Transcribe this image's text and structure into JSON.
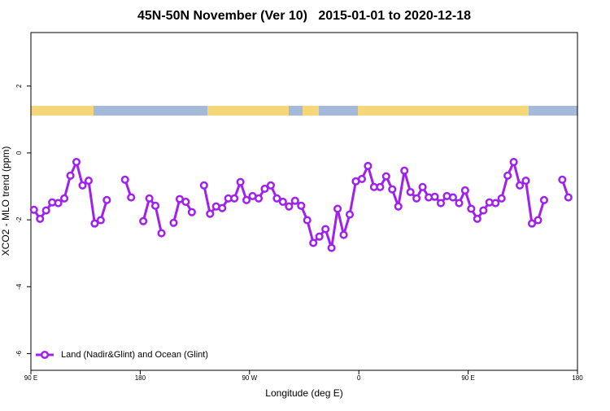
{
  "chart_data": {
    "type": "line",
    "title": "45N-50N November (Ver 10)   2015-01-01 to 2020-12-18",
    "x_label": "Longitude (deg E)",
    "y_label": "XCO2 - MLO trend (ppm)",
    "xlim": [
      90,
      540
    ],
    "xticks": [
      {
        "value": 90,
        "label": "90 E"
      },
      180,
      {
        "value": 270,
        "label": "90 W"
      },
      {
        "value": 360,
        "label": "0"
      },
      {
        "value": 450,
        "label": "90 E"
      },
      {
        "value": 540,
        "label": "180"
      }
    ],
    "ylim": [
      -6.5,
      3.6
    ],
    "yticks": [
      -6,
      -4,
      -2,
      0,
      2
    ],
    "legend": "bottom-left",
    "x": [
      92.5,
      97.5,
      102.5,
      107.5,
      112.5,
      117.5,
      122.5,
      127.5,
      132.5,
      137.5,
      142.5,
      147.5,
      152.5,
      157.5,
      162.5,
      167.5,
      172.5,
      177.5,
      182.5,
      187.5,
      192.5,
      197.5,
      202.5,
      207.5,
      212.5,
      217.5,
      222.5,
      227.5,
      232.5,
      237.5,
      242.5,
      247.5,
      252.5,
      257.5,
      262.5,
      267.5,
      272.5,
      277.5,
      282.5,
      287.5,
      292.5,
      297.5,
      302.5,
      307.5,
      312.5,
      317.5,
      322.5,
      327.5,
      332.5,
      337.5,
      342.5,
      347.5,
      352.5,
      357.5,
      362.5,
      367.5,
      372.5,
      377.5,
      382.5,
      387.5,
      392.5,
      397.5,
      402.5,
      407.5,
      412.5,
      417.5,
      422.5,
      427.5,
      432.5,
      437.5,
      442.5,
      447.5,
      452.5,
      457.5,
      462.5,
      467.5,
      472.5,
      477.5,
      482.5,
      487.5,
      492.5,
      497.5,
      502.5,
      507.5,
      512.5,
      517.5,
      522.5,
      527.5,
      532.5
    ],
    "series": [
      {
        "name": "Land (Nadir&Glint) and Ocean (Glint)",
        "color": "#a020f0",
        "values": [
          -1.7,
          -1.97,
          -1.72,
          -1.48,
          -1.5,
          -1.36,
          -0.68,
          -0.27,
          -0.97,
          -0.83,
          -2.11,
          -2.01,
          -1.41,
          null,
          null,
          -0.8,
          -1.33,
          null,
          -2.04,
          -1.36,
          -1.58,
          -2.4,
          null,
          -2.09,
          -1.38,
          -1.46,
          -1.77,
          null,
          -0.97,
          -1.82,
          -1.6,
          -1.65,
          -1.36,
          -1.36,
          -0.87,
          -1.41,
          -1.29,
          -1.36,
          -1.07,
          -0.97,
          -1.36,
          -1.46,
          -1.6,
          -1.43,
          -1.58,
          -2.01,
          -2.69,
          -2.5,
          -2.28,
          -2.84,
          -1.67,
          -2.45,
          -1.84,
          -0.85,
          -0.78,
          -0.39,
          -1.02,
          -1.02,
          -0.7,
          -1.09,
          -1.6,
          -0.53,
          -1.17,
          -1.36,
          -1.02,
          -1.33,
          -1.31,
          -1.5,
          -1.29,
          -1.33,
          -1.5,
          -1.12,
          -1.67,
          -1.97,
          -1.72,
          -1.48,
          -1.5,
          -1.36,
          -0.68,
          -0.27,
          -0.97,
          -0.83,
          -2.11,
          -2.01,
          -1.41,
          null,
          null,
          -0.8,
          -1.33
        ]
      }
    ]
  }
}
